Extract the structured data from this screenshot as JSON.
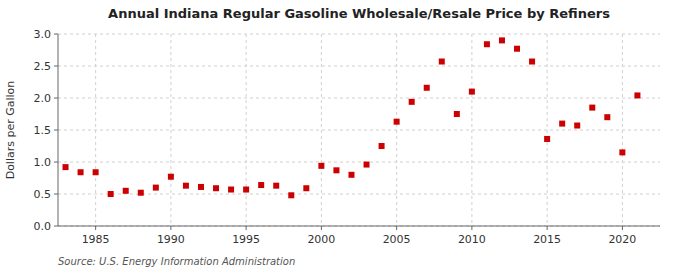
{
  "chart_data": {
    "type": "scatter",
    "title": "Annual Indiana Regular Gasoline Wholesale/Resale Price by Refiners",
    "y_label": "Dollars per Gallon",
    "source": "Source: U.S. Energy Information Administration",
    "x": [
      1983,
      1984,
      1985,
      1986,
      1987,
      1988,
      1989,
      1990,
      1991,
      1992,
      1993,
      1994,
      1995,
      1996,
      1997,
      1998,
      1999,
      2000,
      2001,
      2002,
      2003,
      2004,
      2005,
      2006,
      2007,
      2008,
      2009,
      2010,
      2011,
      2012,
      2013,
      2014,
      2015,
      2016,
      2017,
      2018,
      2019,
      2020,
      2021
    ],
    "values": [
      0.92,
      0.84,
      0.84,
      0.5,
      0.55,
      0.52,
      0.6,
      0.77,
      0.63,
      0.61,
      0.59,
      0.57,
      0.57,
      0.64,
      0.63,
      0.48,
      0.59,
      0.94,
      0.87,
      0.8,
      0.96,
      1.25,
      1.63,
      1.94,
      2.16,
      2.57,
      1.75,
      2.1,
      2.84,
      2.9,
      2.77,
      2.57,
      1.36,
      1.6,
      1.57,
      1.85,
      1.7,
      1.15,
      2.04
    ],
    "color": "#cc0000",
    "marker": "square",
    "xlim": [
      1982.5,
      2022.5
    ],
    "xticks": [
      1985,
      1990,
      1995,
      2000,
      2005,
      2010,
      2015,
      2020
    ],
    "ylim": [
      0.0,
      3.0
    ],
    "yticks": [
      {
        "value": 0.0,
        "label": "0.0"
      },
      0.5,
      {
        "value": 1.0,
        "label": "1.0"
      },
      1.5,
      {
        "value": 2.0,
        "label": "2.0"
      },
      2.5,
      {
        "value": 3.0,
        "label": "3.0"
      }
    ],
    "grid": true
  }
}
